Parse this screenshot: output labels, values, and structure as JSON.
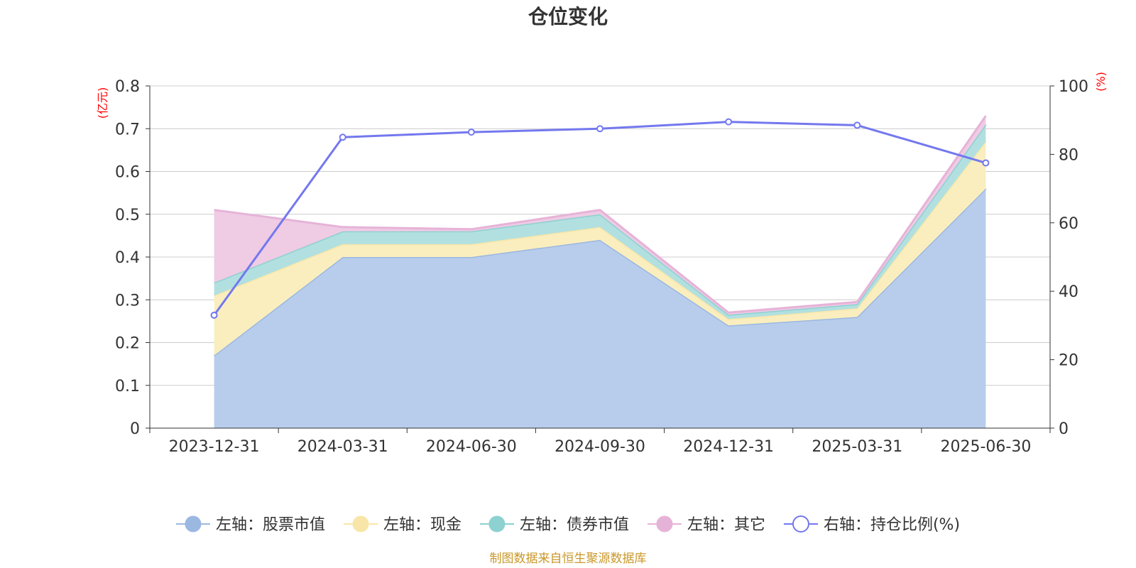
{
  "chart_data": {
    "type": "area",
    "title": "仓位变化",
    "left_unit": "(亿元)",
    "right_unit": "(%)",
    "categories": [
      "2023-12-31",
      "2024-03-31",
      "2024-06-30",
      "2024-09-30",
      "2024-12-31",
      "2025-03-31",
      "2025-06-30"
    ],
    "left_axis": {
      "min": 0,
      "max": 0.8,
      "ticks": [
        "0",
        "0.1",
        "0.2",
        "0.3",
        "0.4",
        "0.5",
        "0.6",
        "0.7",
        "0.8"
      ]
    },
    "right_axis": {
      "min": 0,
      "max": 100,
      "ticks": [
        "0",
        "20",
        "40",
        "60",
        "80",
        "100"
      ]
    },
    "stacked": true,
    "grid": true,
    "legend_position": "bottom",
    "series": [
      {
        "name": "左轴：股票市值",
        "axis": "left",
        "type": "area",
        "color": "#9bb8e0",
        "fill": "#b8cdec",
        "values": [
          0.17,
          0.4,
          0.4,
          0.44,
          0.24,
          0.26,
          0.56
        ]
      },
      {
        "name": "左轴：现金",
        "axis": "left",
        "type": "area",
        "color": "#f8e6a8",
        "fill": "#faeebf",
        "values": [
          0.14,
          0.03,
          0.03,
          0.03,
          0.015,
          0.02,
          0.11
        ]
      },
      {
        "name": "左轴：债券市值",
        "axis": "left",
        "type": "area",
        "color": "#8dd1d1",
        "fill": "#b2e0e0",
        "values": [
          0.03,
          0.03,
          0.03,
          0.03,
          0.01,
          0.01,
          0.04
        ]
      },
      {
        "name": "左轴：其它",
        "axis": "left",
        "type": "area",
        "color": "#e6b3d8",
        "fill": "#efcbe4",
        "values": [
          0.17,
          0.01,
          0.005,
          0.01,
          0.005,
          0.005,
          0.02
        ]
      },
      {
        "name": "右轴：持仓比例(%)",
        "axis": "right",
        "type": "line",
        "color": "#7378ee",
        "values": [
          33,
          85,
          86.5,
          87.5,
          89.5,
          88.5,
          77.5
        ]
      }
    ]
  },
  "source_text": "制图数据来自恒生聚源数据库"
}
